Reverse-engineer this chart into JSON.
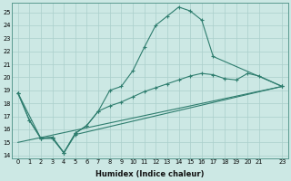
{
  "xlabel": "Humidex (Indice chaleur)",
  "ylabel": "",
  "background_color": "#cce8e4",
  "grid_color": "#aacfcb",
  "line_color": "#2e7d6e",
  "xlim": [
    -0.5,
    23.5
  ],
  "ylim": [
    13.8,
    25.7
  ],
  "xticks": [
    0,
    1,
    2,
    3,
    4,
    5,
    6,
    7,
    8,
    9,
    10,
    11,
    12,
    13,
    14,
    15,
    16,
    17,
    18,
    19,
    20,
    21,
    23
  ],
  "yticks": [
    14,
    15,
    16,
    17,
    18,
    19,
    20,
    21,
    22,
    23,
    24,
    25
  ],
  "series": [
    {
      "x": [
        0,
        1,
        2,
        3,
        4,
        5,
        6,
        7,
        8,
        9,
        10,
        11,
        12,
        13,
        14,
        15,
        16,
        17,
        23
      ],
      "y": [
        18.8,
        16.7,
        15.3,
        15.3,
        14.2,
        15.7,
        16.3,
        17.4,
        19.0,
        19.3,
        20.5,
        22.3,
        24.0,
        24.7,
        25.4,
        25.1,
        24.4,
        21.6,
        19.3
      ],
      "marker": "+"
    },
    {
      "x": [
        0,
        23
      ],
      "y": [
        15.0,
        19.3
      ],
      "marker": null
    },
    {
      "x": [
        0,
        1,
        2,
        3,
        4,
        5,
        23
      ],
      "y": [
        18.8,
        16.7,
        15.3,
        15.4,
        14.2,
        15.6,
        19.3
      ],
      "marker": "+"
    },
    {
      "x": [
        0,
        2,
        3,
        4,
        5,
        6,
        7,
        8,
        9,
        10,
        11,
        12,
        13,
        14,
        15,
        16,
        17,
        18,
        19,
        20,
        21,
        23
      ],
      "y": [
        18.8,
        15.3,
        15.4,
        14.2,
        15.7,
        16.3,
        17.4,
        17.8,
        18.1,
        18.5,
        18.9,
        19.2,
        19.5,
        19.8,
        20.1,
        20.3,
        20.2,
        19.9,
        19.8,
        20.3,
        20.1,
        19.3
      ],
      "marker": "+"
    }
  ]
}
